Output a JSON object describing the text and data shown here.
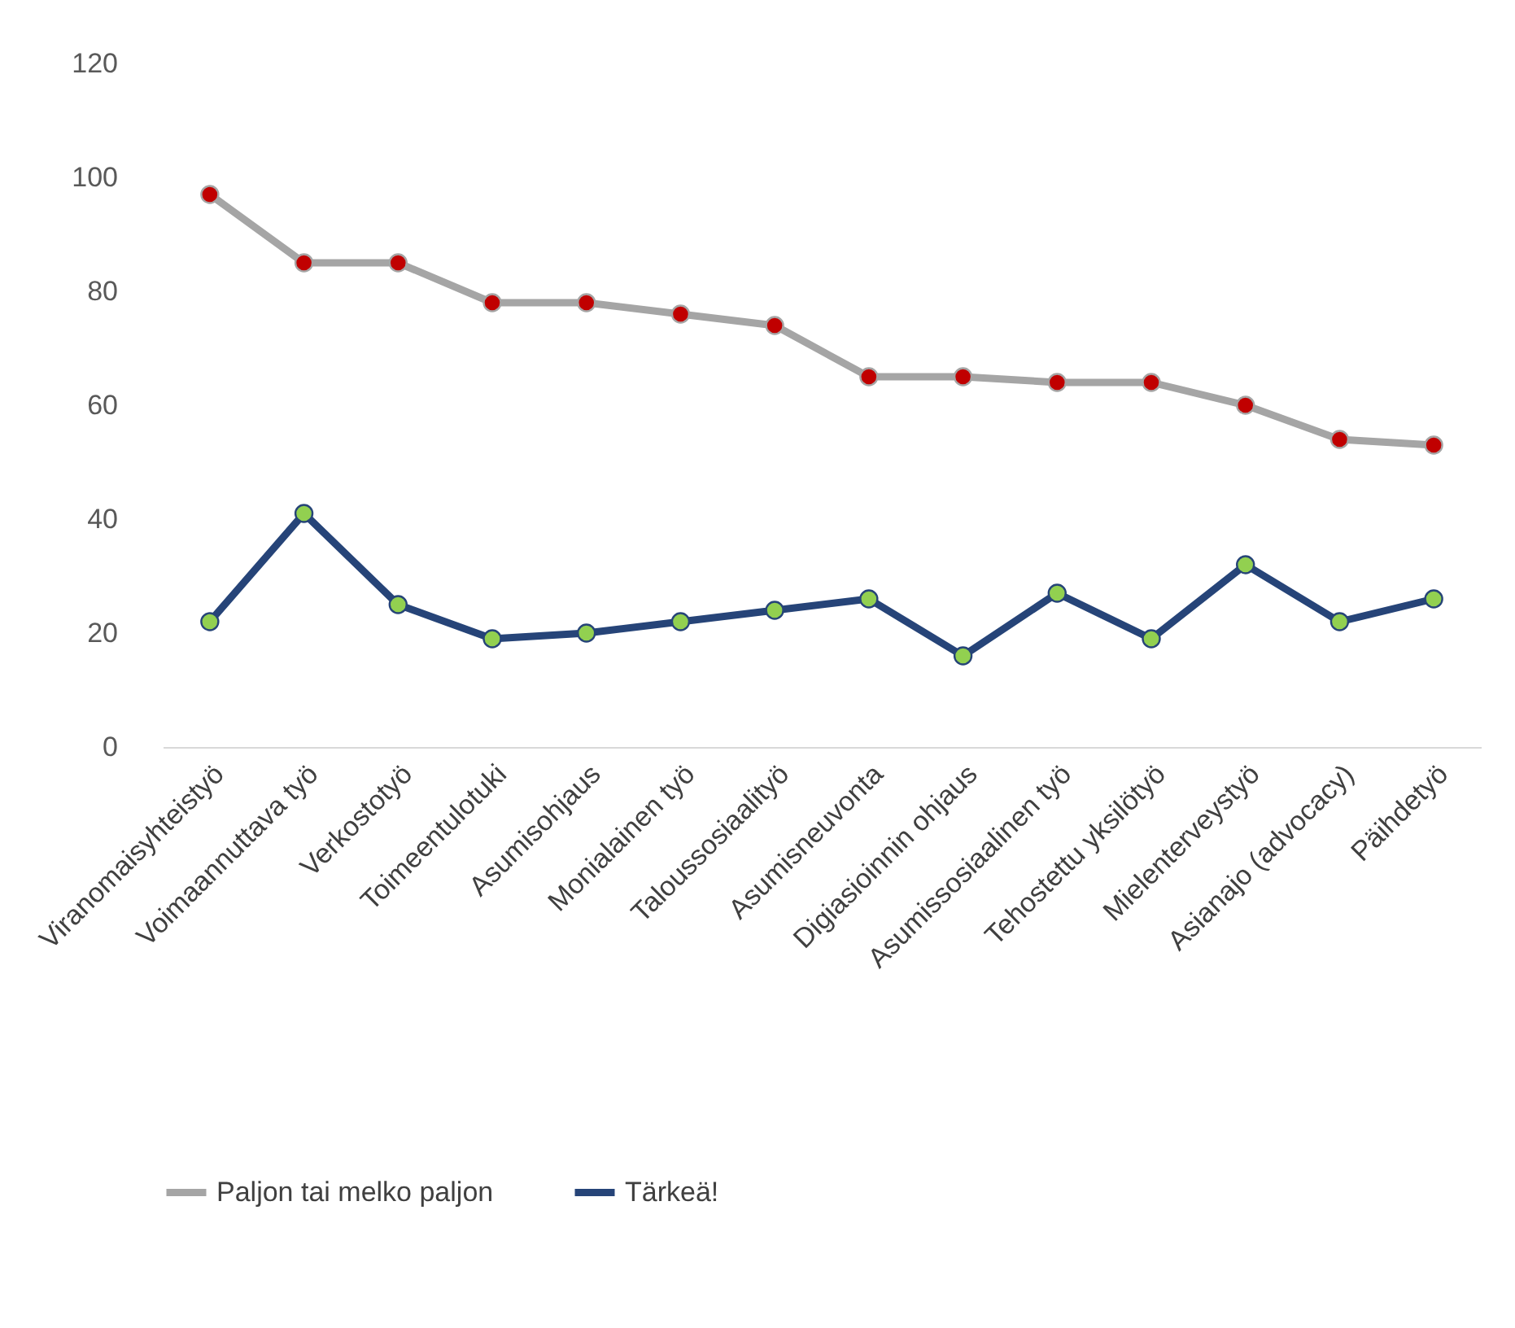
{
  "chart_data": {
    "type": "line",
    "categories": [
      "Viranomaisyhteistyö",
      "Voimaannuttava työ",
      "Verkostotyö",
      "Toimeentulotuki",
      "Asumisohjaus",
      "Monialainen työ",
      "Taloussosiaalityö",
      "Asumisneuvonta",
      "Digiasioinnin ohjaus",
      "Asumissosiaalinen työ",
      "Tehostettu yksilötyö",
      "Mielenterveystyö",
      "Asianajo (advocacy)",
      "Päihdetyö"
    ],
    "series": [
      {
        "name": "Paljon tai melko paljon",
        "color": "#a5a5a5",
        "colors": [
          "#c00000",
          "#c00000",
          "#c00000",
          "#c00000",
          "#c00000",
          "#c00000",
          "#c00000",
          "#c00000",
          "#c00000",
          "#c00000",
          "#c00000",
          "#c00000",
          "#c00000",
          "#c00000"
        ],
        "values": [
          97,
          85,
          85,
          78,
          78,
          76,
          74,
          65,
          65,
          64,
          64,
          60,
          54,
          53
        ]
      },
      {
        "name": "Tärkeä!",
        "color": "#264478",
        "colors": [
          "#92d050",
          "#92d050",
          "#92d050",
          "#92d050",
          "#92d050",
          "#92d050",
          "#92d050",
          "#92d050",
          "#92d050",
          "#92d050",
          "#92d050",
          "#92d050",
          "#92d050",
          "#92d050"
        ],
        "values": [
          22,
          41,
          25,
          19,
          20,
          22,
          24,
          26,
          16,
          27,
          19,
          32,
          22,
          26
        ]
      }
    ],
    "ylim": [
      0,
      120
    ],
    "yticks": [
      0,
      20,
      40,
      60,
      80,
      100,
      120
    ],
    "grid": false,
    "legend": "bottom",
    "marker": "circle",
    "line_style": "solid"
  }
}
